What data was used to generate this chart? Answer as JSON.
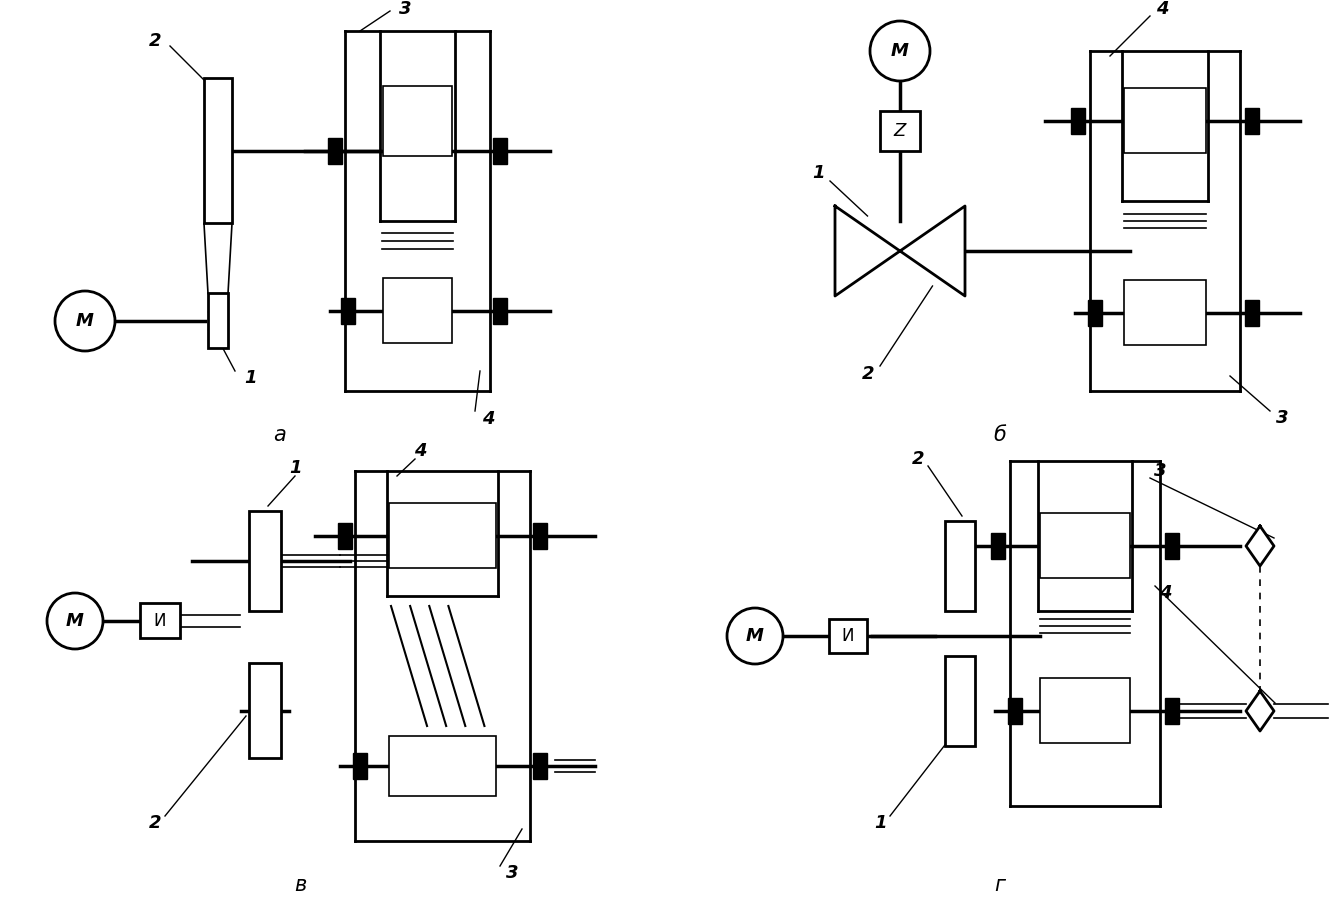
{
  "bg_color": "#ffffff",
  "line_color": "#000000",
  "labels": {
    "a": "а",
    "b": "б",
    "v": "в",
    "g": "г"
  },
  "lw": 2.0,
  "lw_thick": 2.5,
  "lw_thin": 1.2
}
